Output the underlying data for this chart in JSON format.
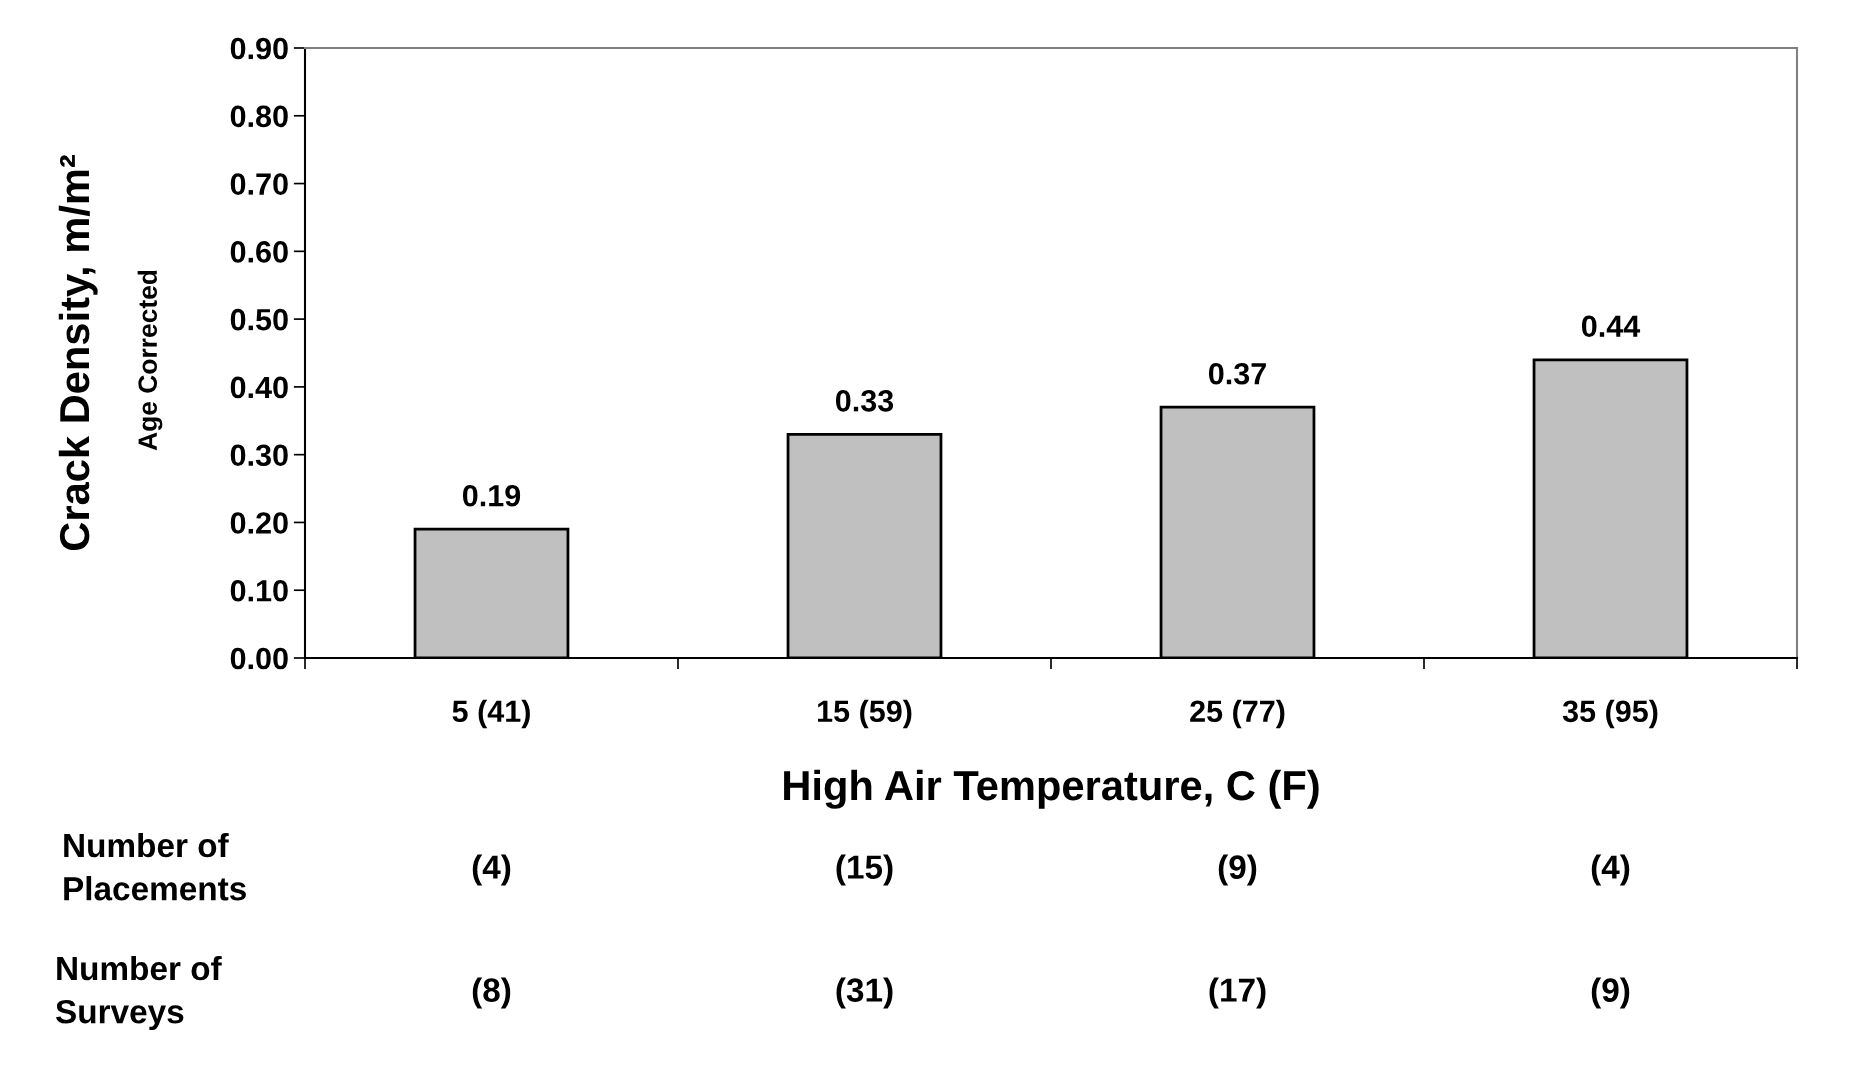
{
  "chart_data": {
    "type": "bar",
    "xlabel": "High Air Temperature, C (F)",
    "ylabel": "Crack Density, m/m²",
    "categories": [
      "5 (41)",
      "15 (59)",
      "25 (77)",
      "35 (95)"
    ],
    "values": [
      0.19,
      0.33,
      0.37,
      0.44
    ],
    "color": "#c0c0c0",
    "data_labels": true,
    "value_labels": [
      "0.19",
      "0.33",
      "0.37",
      "0.44"
    ],
    "ylim": [
      0,
      0.9
    ],
    "yticks": [
      {
        "value": 0,
        "label": "0.00"
      },
      {
        "value": 0.1,
        "label": "0.10"
      },
      {
        "value": 0.2,
        "label": "0.20"
      },
      {
        "value": 0.3,
        "label": "0.30"
      },
      {
        "value": 0.4,
        "label": "0.40"
      },
      {
        "value": 0.5,
        "label": "0.50"
      },
      {
        "value": 0.6,
        "label": "0.60"
      },
      {
        "value": 0.7,
        "label": "0.70"
      },
      {
        "value": 0.8,
        "label": "0.80"
      },
      {
        "value": 0.9,
        "label": "0.90"
      }
    ],
    "grid": false,
    "legend": false,
    "annotations": [
      "Age Corrected",
      "Number of\nPlacements",
      "(4)",
      "(15)",
      "(9)",
      "(4)",
      "Number of\nSurveys",
      "(8)",
      "(31)",
      "(17)",
      "(9)"
    ]
  }
}
